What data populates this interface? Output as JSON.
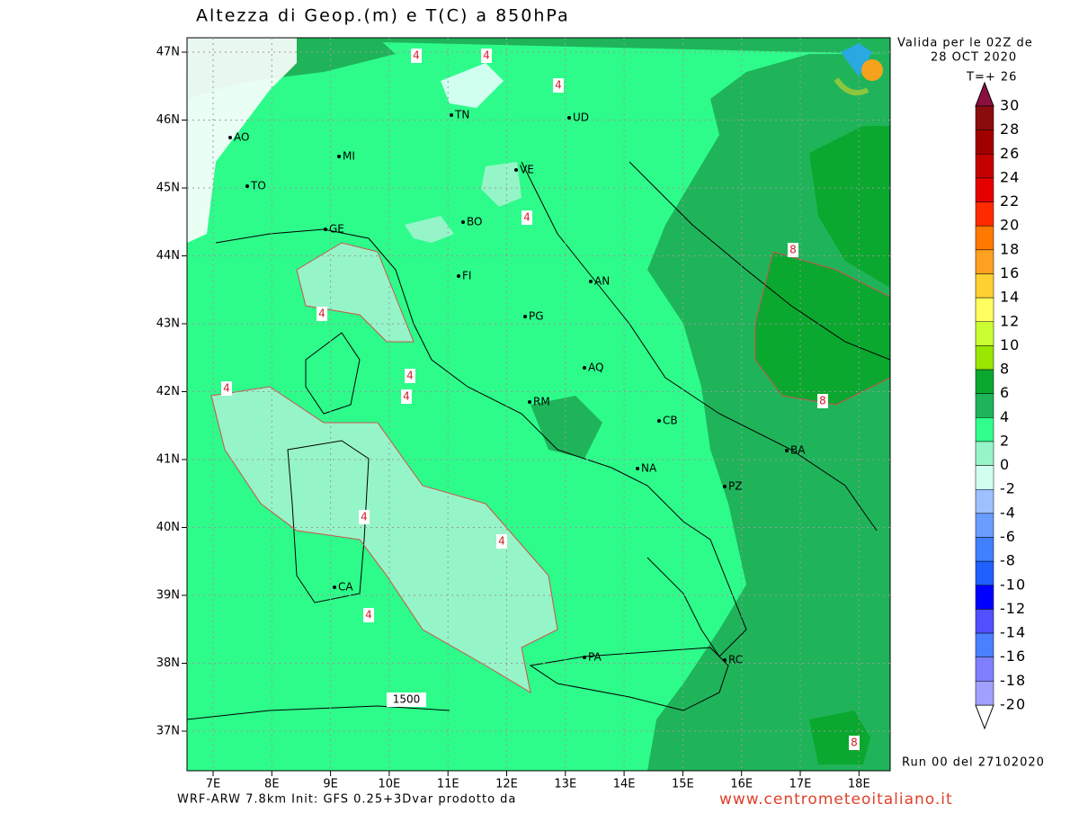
{
  "header": {
    "title": "Altezza di Geop.(m) e T(C) a 850hPa",
    "valid_line": "Valida per le 02Z de",
    "date": "28 OCT 2020",
    "step": "T=+ 26"
  },
  "axes": {
    "lon_ticks": [
      {
        "value": 7,
        "label": "7E"
      },
      {
        "value": 8,
        "label": "8E"
      },
      {
        "value": 9,
        "label": "9E"
      },
      {
        "value": 10,
        "label": "10E"
      },
      {
        "value": 11,
        "label": "11E"
      },
      {
        "value": 12,
        "label": "12E"
      },
      {
        "value": 13,
        "label": "13E"
      },
      {
        "value": 14,
        "label": "14E"
      },
      {
        "value": 15,
        "label": "15E"
      },
      {
        "value": 16,
        "label": "16E"
      },
      {
        "value": 17,
        "label": "17E"
      },
      {
        "value": 18,
        "label": "18E"
      }
    ],
    "lat_ticks": [
      {
        "value": 47,
        "label": "47N"
      },
      {
        "value": 46,
        "label": "46N"
      },
      {
        "value": 45,
        "label": "45N"
      },
      {
        "value": 44,
        "label": "44N"
      },
      {
        "value": 43,
        "label": "43N"
      },
      {
        "value": 42,
        "label": "42N"
      },
      {
        "value": 41,
        "label": "41N"
      },
      {
        "value": 40,
        "label": "40N"
      },
      {
        "value": 39,
        "label": "39N"
      },
      {
        "value": 38,
        "label": "38N"
      },
      {
        "value": 37,
        "label": "37N"
      }
    ]
  },
  "cities": [
    "AO",
    "MI",
    "TO",
    "GE",
    "TN",
    "UD",
    "VE",
    "BO",
    "FI",
    "AN",
    "PG",
    "AQ",
    "RM",
    "CB",
    "BA",
    "NA",
    "PZ",
    "CA",
    "PA",
    "RC"
  ],
  "contour_labels": [
    "4",
    "4",
    "4",
    "4",
    "4",
    "4",
    "4",
    "4",
    "4",
    "4",
    "4",
    "8",
    "8",
    "8",
    "1500"
  ],
  "legend": {
    "levels": [
      30,
      28,
      26,
      24,
      22,
      20,
      18,
      16,
      14,
      12,
      10,
      8,
      6,
      4,
      2,
      0,
      -2,
      -4,
      -6,
      -8,
      -10,
      -12,
      -14,
      -16,
      -18,
      -20
    ],
    "colors": [
      "#8b0c0c",
      "#a00000",
      "#c40000",
      "#e60000",
      "#ff2a00",
      "#ff7800",
      "#ffa020",
      "#ffd030",
      "#ffff60",
      "#ccff33",
      "#99e600",
      "#0aa82e",
      "#1fb45a",
      "#30ff8c",
      "#96f5c8",
      "#d0fff0",
      "#9ec0ff",
      "#6a9cff",
      "#4080ff",
      "#2060ff",
      "#0000ff",
      "#5050ff",
      "#4a80ff",
      "#8080ff",
      "#a0a0ff",
      "#a8a8a8"
    ],
    "top_color": "#8b1040",
    "bottom_color": "#ffffff"
  },
  "footer": {
    "run": "Run 00 del 27102020",
    "model": "WRF-ARW 7.8km Init: GFS 0.25+3Dvar prodotto da",
    "site": "www.centrometeoitaliano.it"
  }
}
